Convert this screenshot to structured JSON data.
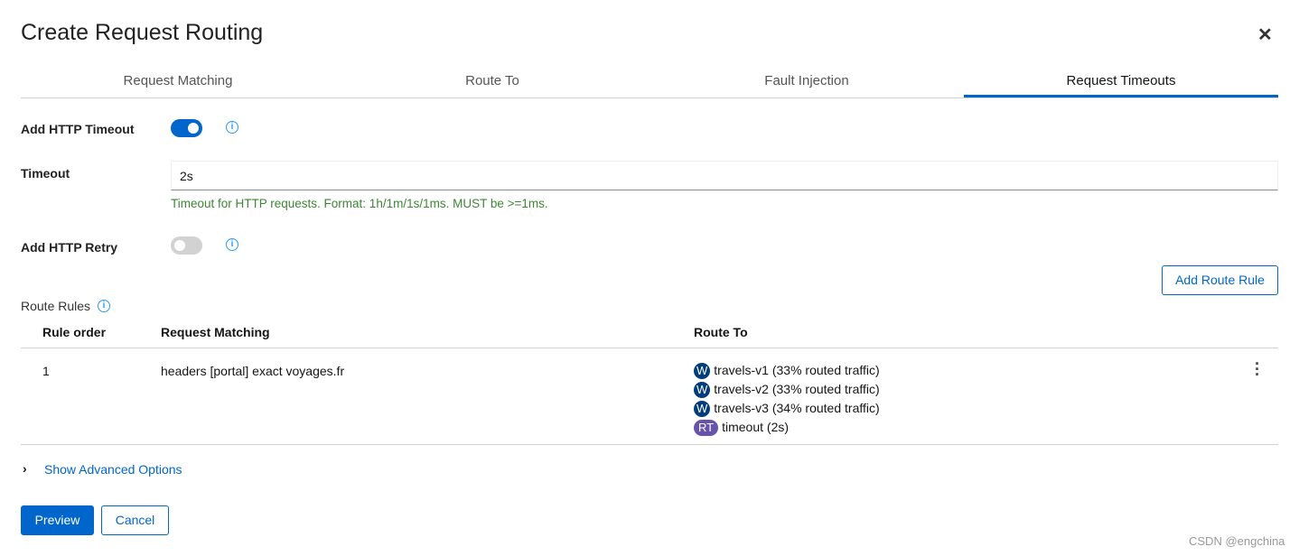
{
  "title": "Create Request Routing",
  "tabs": [
    {
      "label": "Request Matching"
    },
    {
      "label": "Route To"
    },
    {
      "label": "Fault Injection"
    },
    {
      "label": "Request Timeouts",
      "active": true
    }
  ],
  "form": {
    "timeout_toggle_label": "Add HTTP Timeout",
    "timeout_toggle_on": true,
    "timeout_label": "Timeout",
    "timeout_value": "2s",
    "timeout_help": "Timeout for HTTP requests. Format: 1h/1m/1s/1ms. MUST be >=1ms.",
    "retry_toggle_label": "Add HTTP Retry",
    "retry_toggle_on": false
  },
  "add_route_rule": "Add Route Rule",
  "route_rules": {
    "label": "Route Rules",
    "columns": [
      "Rule order",
      "Request Matching",
      "Route To"
    ],
    "rows": [
      {
        "order": "1",
        "matching": "headers [portal] exact voyages.fr",
        "route_to": [
          {
            "badge": "W",
            "text": "travels-v1 (33% routed traffic)"
          },
          {
            "badge": "W",
            "text": "travels-v2 (33% routed traffic)"
          },
          {
            "badge": "W",
            "text": "travels-v3 (34% routed traffic)"
          },
          {
            "badge": "RT",
            "text": "timeout (2s)"
          }
        ]
      }
    ]
  },
  "advanced": "Show Advanced Options",
  "preview": "Preview",
  "cancel": "Cancel",
  "watermark": "CSDN @engchina",
  "colors": {
    "primary": "#0066cc",
    "workload_badge": "#003c79",
    "rt_badge": "#6753ac",
    "help": "#3e8635"
  }
}
